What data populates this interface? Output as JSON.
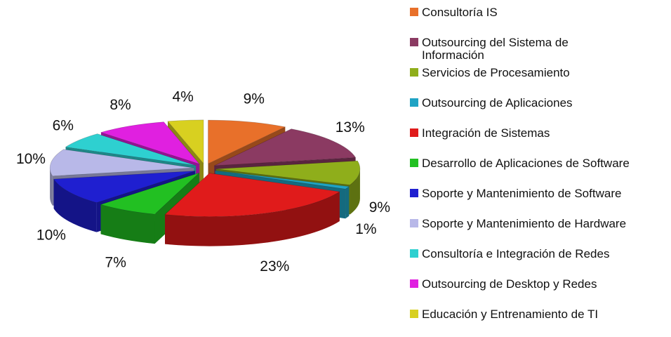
{
  "chart_data": {
    "type": "pie3d",
    "categories": [
      "Consultoría IS",
      "Outsourcing del Sistema de Información",
      "Servicios de Procesamiento",
      "Outsourcing de Aplicaciones",
      "Integración de Sistemas",
      "Desarrollo de Aplicaciones de Software",
      "Soporte y Mantenimiento de Software",
      "Soporte y Mantenimiento de Hardware",
      "Consultoría e Integración de Redes",
      "Outsourcing de Desktop y Redes",
      "Educación y Entrenamiento de TI"
    ],
    "values": [
      9,
      13,
      9,
      1,
      23,
      7,
      10,
      10,
      6,
      8,
      4
    ],
    "value_labels": [
      "9%",
      "13%",
      "9%",
      "1%",
      "23%",
      "7%",
      "10%",
      "10%",
      "6%",
      "8%",
      "4%"
    ],
    "colors": [
      "#e8702a",
      "#8b3a62",
      "#8fae1b",
      "#1fa3c4",
      "#e01b1b",
      "#22c022",
      "#1f1fd0",
      "#b8b8e8",
      "#2ed0d0",
      "#e020e0",
      "#d8d020"
    ],
    "legend": "right"
  }
}
